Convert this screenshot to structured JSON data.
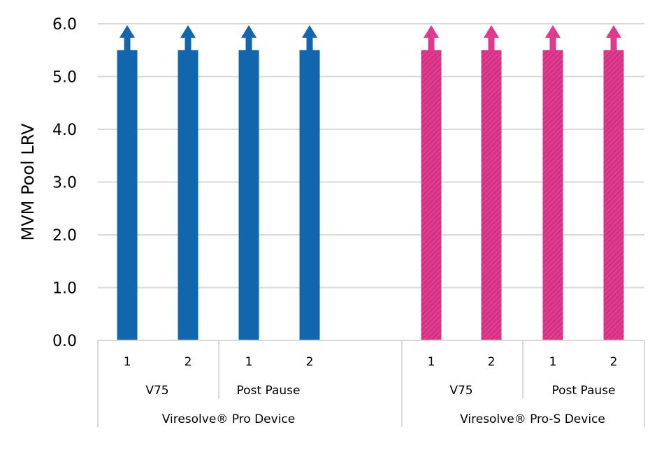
{
  "chart_data": {
    "type": "bar",
    "ylabel": "MVM Pool LRV",
    "ylim": [
      0,
      6.0
    ],
    "yticks": [
      "0.0",
      "1.0",
      "2.0",
      "3.0",
      "4.0",
      "5.0",
      "6.0"
    ],
    "grid": true,
    "category_levels": {
      "replicate": [
        "1",
        "2",
        "1",
        "2",
        "1",
        "2",
        "1",
        "2"
      ],
      "stage": [
        "V75",
        "Post Pause",
        "V75",
        "Post Pause"
      ],
      "device": [
        "Viresolve® Pro Device",
        "Viresolve® Pro-S Device"
      ]
    },
    "series": [
      {
        "device": "Viresolve® Pro Device",
        "color": "#1266AE",
        "pattern": "solid",
        "values": [
          5.5,
          5.5,
          5.5,
          5.5
        ],
        "greater_than": true
      },
      {
        "device": "Viresolve® Pro-S Device",
        "color": "#E03A8E",
        "pattern": "diagonal-hatch",
        "values": [
          5.5,
          5.5,
          5.5,
          5.5
        ],
        "greater_than": true
      }
    ],
    "annotation": "upward arrows above bars indicate values greater than shown"
  }
}
